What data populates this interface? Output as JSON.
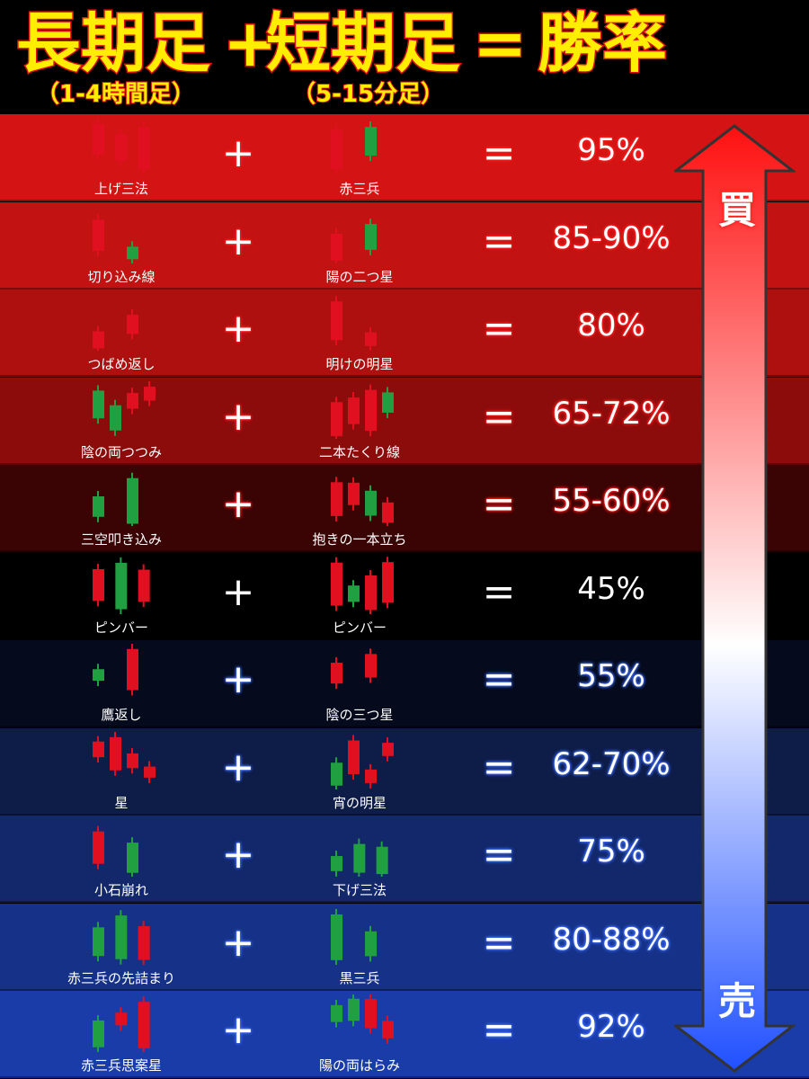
{
  "header": {
    "long": "長期足",
    "plus": "+",
    "short": "短期足",
    "equals": "=",
    "rate": "勝率",
    "long_sub": "（1-4時間足）",
    "short_sub": "（5-15分足）"
  },
  "arrow": {
    "top": "買",
    "bottom": "売"
  },
  "rows": [
    {
      "long": "上げ三法",
      "short": "赤三兵",
      "rate": "95%"
    },
    {
      "long": "切り込み線",
      "short": "陽の二つ星",
      "rate": "85-90%"
    },
    {
      "long": "つばめ返し",
      "short": "明けの明星",
      "rate": "80%"
    },
    {
      "long": "陰の両つつみ",
      "short": "二本たくり線",
      "rate": "65-72%"
    },
    {
      "long": "三空叩き込み",
      "short": "抱きの一本立ち",
      "rate": "55-60%"
    },
    {
      "long": "ピンバー",
      "short": "ピンバー",
      "rate": "45%"
    },
    {
      "long": "鷹返し",
      "short": "陰の三つ星",
      "rate": "55%"
    },
    {
      "long": "星",
      "short": "宵の明星",
      "rate": "62-70%"
    },
    {
      "long": "小石崩れ",
      "short": "下げ三法",
      "rate": "75%"
    },
    {
      "long": "赤三兵の先詰まり",
      "short": "黒三兵",
      "rate": "80-88%"
    },
    {
      "long": "赤三兵思案星",
      "short": "陽の両はらみ",
      "rate": "92%"
    }
  ]
}
